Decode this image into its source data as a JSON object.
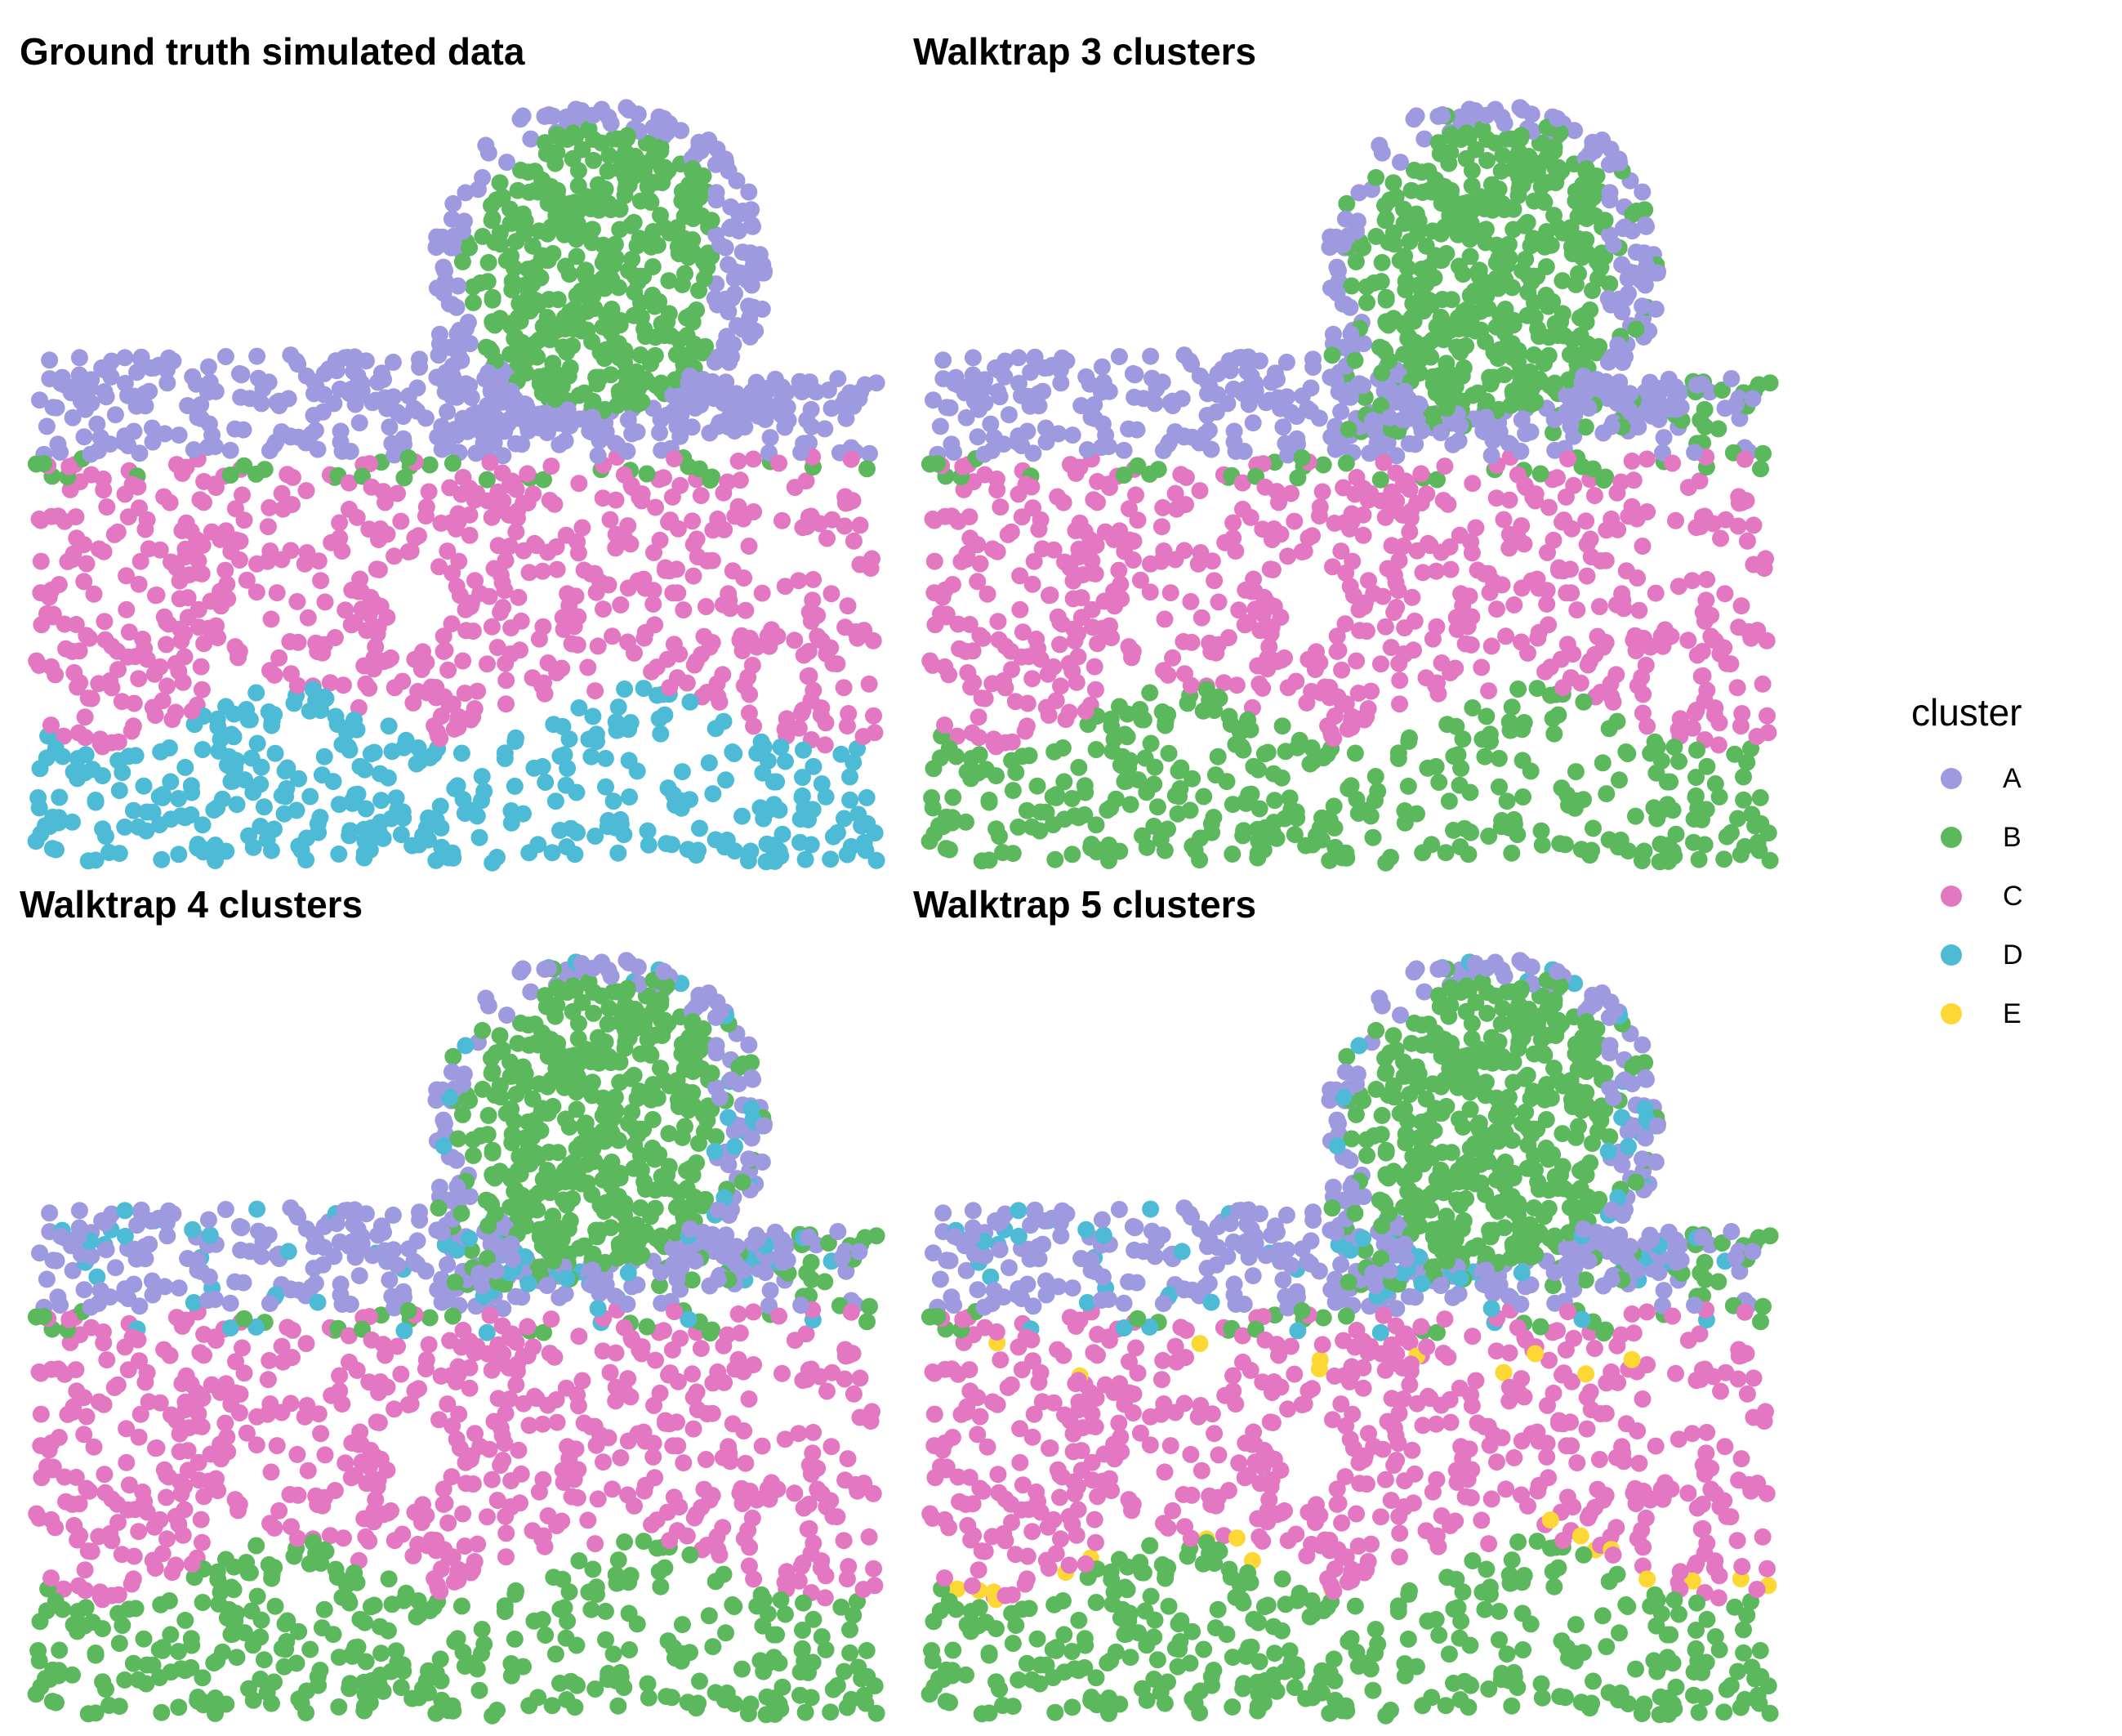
{
  "panels": [
    {
      "id": "p1",
      "title": "Ground truth simulated data",
      "mode": "truth"
    },
    {
      "id": "p2",
      "title": "Walktrap 3 clusters",
      "mode": "k3"
    },
    {
      "id": "p3",
      "title": "Walktrap 4 clusters",
      "mode": "k4"
    },
    {
      "id": "p4",
      "title": "Walktrap 5 clusters",
      "mode": "k5"
    }
  ],
  "legend": {
    "title": "cluster",
    "items": [
      {
        "label": "A",
        "color": "#9E9AE0"
      },
      {
        "label": "B",
        "color": "#5CB85C"
      },
      {
        "label": "C",
        "color": "#E377C2"
      },
      {
        "label": "D",
        "color": "#4DBBD5"
      },
      {
        "label": "E",
        "color": "#FDD835"
      }
    ]
  },
  "chart_data": {
    "type": "scatter",
    "facets": [
      "Ground truth simulated data",
      "Walktrap 3 clusters",
      "Walktrap 4 clusters",
      "Walktrap 5 clusters"
    ],
    "color_by": "cluster",
    "categories": [
      "A",
      "B",
      "C",
      "D",
      "E"
    ],
    "axes": "none",
    "grid": false,
    "legend_position": "right"
  }
}
